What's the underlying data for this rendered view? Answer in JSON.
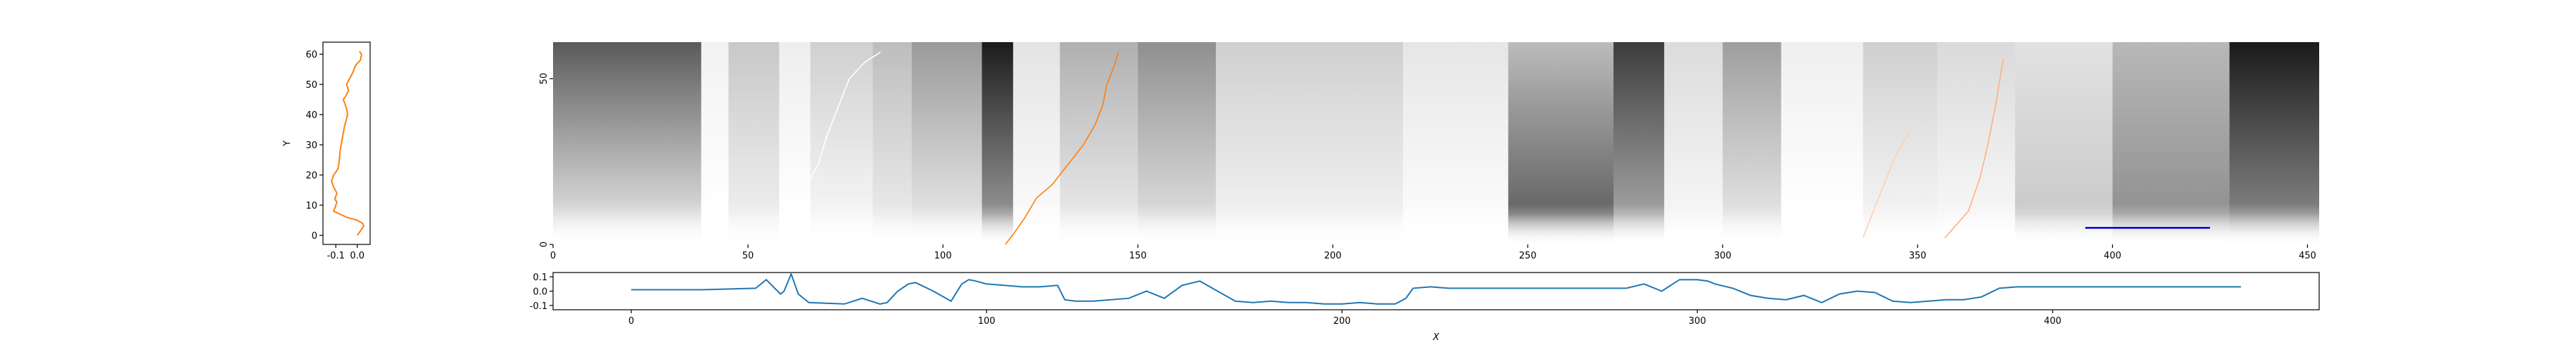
{
  "chart_data": [
    {
      "id": "profile",
      "type": "line",
      "ylabel": "Y",
      "xlabel": "",
      "xlim": [
        -0.16,
        0.06
      ],
      "ylim": [
        -3,
        64
      ],
      "xticks": [
        -0.1,
        0.0
      ],
      "xtick_labels": [
        "-0.1",
        "0.0"
      ],
      "yticks": [
        0,
        10,
        20,
        30,
        40,
        50,
        60
      ],
      "ytick_labels": [
        "0",
        "10",
        "20",
        "30",
        "40",
        "50",
        "60"
      ],
      "color": "#ff7f0e",
      "series": [
        {
          "x": [
            0.0,
            0.01,
            0.02,
            0.03,
            0.025,
            0.0,
            -0.05,
            -0.08,
            -0.11,
            -0.1,
            -0.095,
            -0.105,
            -0.095,
            -0.11,
            -0.12,
            -0.11,
            -0.1,
            -0.09,
            -0.085,
            -0.08,
            -0.07,
            -0.06,
            -0.045,
            -0.05,
            -0.06,
            -0.065,
            -0.055,
            -0.04,
            -0.05,
            -0.035,
            -0.02,
            -0.01,
            0.0,
            0.015,
            0.02,
            0.01
          ],
          "y": [
            0,
            1,
            2,
            3,
            4,
            5,
            6,
            7,
            8,
            10,
            11,
            12,
            14,
            16,
            18,
            20,
            21,
            22,
            24,
            28,
            32,
            36,
            40,
            42,
            44,
            45,
            46,
            48,
            50,
            52,
            54,
            56,
            57,
            58,
            60,
            61
          ]
        }
      ]
    },
    {
      "id": "heatmap",
      "type": "heatmap",
      "xlim": [
        0,
        453
      ],
      "ylim": [
        0,
        61
      ],
      "xticks": [
        0,
        50,
        100,
        150,
        200,
        250,
        300,
        350,
        400,
        450
      ],
      "xtick_labels": [
        "0",
        "50",
        "100",
        "150",
        "200",
        "250",
        "300",
        "350",
        "400",
        "450"
      ],
      "yticks": [
        0,
        50
      ],
      "ytick_labels": [
        "0",
        "50"
      ],
      "colormap": "gray_r",
      "overlay_lines": [
        {
          "color": "#ffffff",
          "x": [
            66,
            68,
            70,
            72,
            74,
            76,
            80,
            84
          ],
          "y": [
            20,
            24,
            32,
            38,
            44,
            50,
            55,
            58
          ]
        },
        {
          "color": "#ff7f0e",
          "x": [
            116,
            118,
            121,
            124,
            128,
            132,
            136,
            139,
            141,
            142,
            144,
            145
          ],
          "y": [
            0,
            3,
            8,
            14,
            18,
            24,
            30,
            36,
            42,
            48,
            54,
            58
          ]
        },
        {
          "color": "#ffd0b0",
          "x": [
            336,
            338,
            340,
            342,
            344,
            348
          ],
          "y": [
            2,
            8,
            14,
            20,
            26,
            34
          ]
        },
        {
          "color": "#ffb080",
          "x": [
            357,
            360,
            363,
            366,
            368,
            370,
            372
          ],
          "y": [
            2,
            6,
            10,
            20,
            30,
            42,
            56
          ]
        }
      ],
      "scale_bar": {
        "x": [
          393,
          425
        ],
        "y": 5,
        "color": "#0000cc"
      }
    },
    {
      "id": "trace",
      "type": "line",
      "xlabel": "X",
      "ylabel": "",
      "xlim": [
        -22,
        475
      ],
      "ylim": [
        -0.13,
        0.13
      ],
      "xticks": [
        0,
        100,
        200,
        300,
        400
      ],
      "xtick_labels": [
        "0",
        "100",
        "200",
        "300",
        "400"
      ],
      "yticks": [
        -0.1,
        0.0,
        0.1
      ],
      "ytick_labels": [
        "-0.1",
        "0.0",
        "0.1"
      ],
      "color": "#1f77b4",
      "series": [
        {
          "x": [
            0,
            20,
            35,
            38,
            40,
            42,
            43,
            45,
            47,
            50,
            60,
            65,
            70,
            72,
            75,
            78,
            80,
            85,
            90,
            93,
            95,
            97,
            100,
            105,
            110,
            115,
            120,
            122,
            125,
            130,
            140,
            145,
            150,
            155,
            160,
            165,
            170,
            175,
            180,
            185,
            190,
            195,
            200,
            205,
            210,
            215,
            218,
            220,
            225,
            230,
            240,
            250,
            260,
            270,
            280,
            285,
            290,
            295,
            300,
            303,
            305,
            310,
            315,
            320,
            325,
            330,
            335,
            340,
            345,
            350,
            355,
            360,
            365,
            370,
            375,
            380,
            385,
            390,
            400,
            410,
            420,
            430,
            440,
            450,
            453
          ],
          "y": [
            0.01,
            0.01,
            0.02,
            0.08,
            0.03,
            -0.02,
            0.0,
            0.12,
            -0.02,
            -0.08,
            -0.09,
            -0.05,
            -0.09,
            -0.08,
            0.0,
            0.05,
            0.06,
            0.0,
            -0.07,
            0.05,
            0.08,
            0.07,
            0.05,
            0.04,
            0.03,
            0.03,
            0.04,
            -0.06,
            -0.07,
            -0.07,
            -0.05,
            0.0,
            -0.05,
            0.04,
            0.07,
            0.0,
            -0.07,
            -0.08,
            -0.07,
            -0.08,
            -0.08,
            -0.09,
            -0.09,
            -0.08,
            -0.09,
            -0.09,
            -0.05,
            0.02,
            0.03,
            0.02,
            0.02,
            0.02,
            0.02,
            0.02,
            0.02,
            0.05,
            0.0,
            0.08,
            0.08,
            0.07,
            0.05,
            0.02,
            -0.03,
            -0.05,
            -0.06,
            -0.03,
            -0.08,
            -0.02,
            0.0,
            -0.01,
            -0.07,
            -0.08,
            -0.07,
            -0.06,
            -0.06,
            -0.04,
            0.02,
            0.03,
            0.03,
            0.03,
            0.03,
            0.03,
            0.03,
            0.03,
            0.03
          ]
        }
      ]
    }
  ]
}
